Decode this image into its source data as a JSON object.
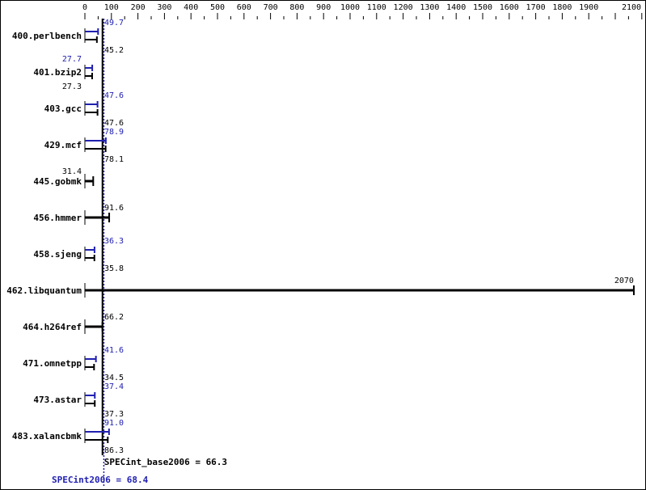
{
  "chart_data": {
    "type": "bar",
    "orientation": "horizontal",
    "xlim": [
      0,
      2100
    ],
    "x_ticks": [
      0,
      100,
      200,
      300,
      400,
      500,
      600,
      700,
      800,
      900,
      1000,
      1100,
      1200,
      1300,
      1400,
      1500,
      1600,
      1700,
      1800,
      1900,
      2100
    ],
    "colors": {
      "base": "#000000",
      "peak": "#2020b0"
    },
    "categories": [
      "400.perlbench",
      "401.bzip2",
      "403.gcc",
      "429.mcf",
      "445.gobmk",
      "456.hmmer",
      "458.sjeng",
      "462.libquantum",
      "464.h264ref",
      "471.omnetpp",
      "473.astar",
      "483.xalancbmk"
    ],
    "series": [
      {
        "key": "peak",
        "values": [
          49.7,
          27.7,
          47.6,
          78.9,
          null,
          null,
          36.3,
          null,
          null,
          41.6,
          37.4,
          91.0
        ]
      },
      {
        "key": "base",
        "values": [
          45.2,
          27.3,
          47.6,
          78.1,
          31.4,
          91.6,
          35.8,
          2070,
          66.2,
          34.5,
          37.3,
          86.3
        ]
      }
    ],
    "labels": {
      "peak": [
        "49.7",
        "27.7",
        "47.6",
        "78.9",
        "",
        "",
        "36.3",
        "",
        "",
        "41.6",
        "37.4",
        "91.0"
      ],
      "base": [
        "45.2",
        "27.3",
        "47.6",
        "78.1",
        "31.4",
        "91.6",
        "35.8",
        "2070",
        "66.2",
        "34.5",
        "37.3",
        "86.3"
      ]
    },
    "reference_lines": [
      {
        "key": "base",
        "value": 66.3,
        "label": "SPECint_base2006 = 66.3"
      },
      {
        "key": "peak",
        "value": 68.4,
        "label": "SPECint2006 = 68.4"
      }
    ]
  }
}
